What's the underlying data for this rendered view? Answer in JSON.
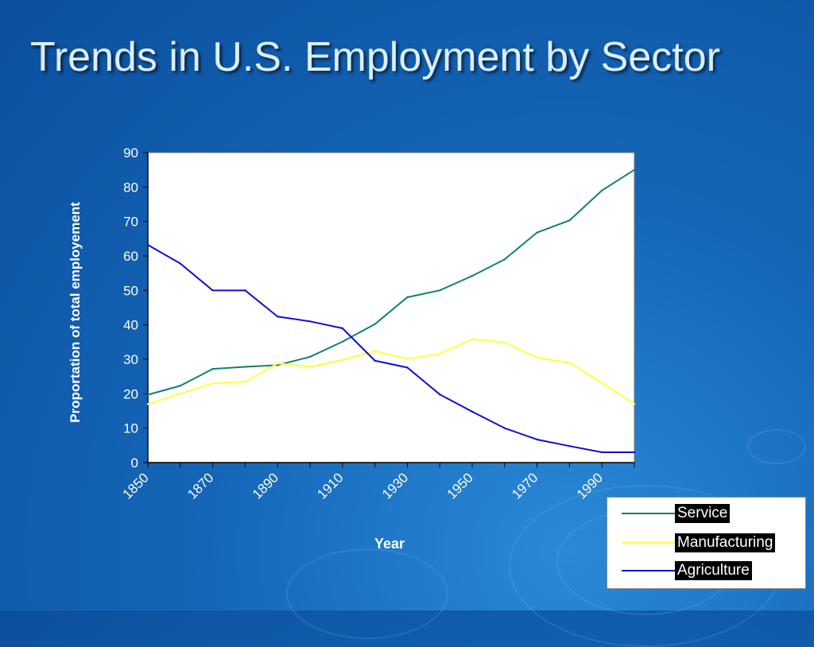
{
  "slide": {
    "title": "Trends in U.S. Employment by Sector"
  },
  "chart_data": {
    "type": "line",
    "title": "",
    "xlabel": "Year",
    "ylabel": "Proportation of total employement",
    "x": [
      1850,
      1860,
      1870,
      1880,
      1890,
      1900,
      1910,
      1920,
      1930,
      1940,
      1950,
      1960,
      1970,
      1980,
      1990,
      2000
    ],
    "xlim": [
      1850,
      2000
    ],
    "xticks": [
      1850,
      1870,
      1890,
      1910,
      1930,
      1950,
      1970,
      1990
    ],
    "ylim": [
      0,
      90
    ],
    "yticks": [
      0,
      10,
      20,
      30,
      40,
      50,
      60,
      70,
      80,
      90
    ],
    "grid": false,
    "legend": "bottom-right",
    "series": [
      {
        "name": "Service",
        "color": "#138070",
        "values": [
          19.7,
          22.3,
          27.2,
          27.8,
          28.3,
          30.7,
          35.1,
          40.2,
          48.0,
          50.0,
          54.2,
          59.0,
          66.8,
          70.3,
          79.0,
          85.0
        ]
      },
      {
        "name": "Manufacturing",
        "color": "#ffff40",
        "values": [
          17.0,
          20.0,
          23.0,
          23.5,
          28.8,
          27.8,
          29.8,
          32.4,
          30.1,
          31.6,
          35.8,
          34.9,
          30.5,
          29.0,
          23.1,
          17.0
        ]
      },
      {
        "name": "Agriculture",
        "color": "#0f0fd0",
        "values": [
          63.2,
          57.8,
          50.0,
          50.0,
          42.4,
          41.0,
          39.0,
          29.6,
          27.6,
          19.8,
          14.8,
          10.0,
          6.7,
          4.8,
          3.0,
          3.0
        ]
      }
    ]
  }
}
